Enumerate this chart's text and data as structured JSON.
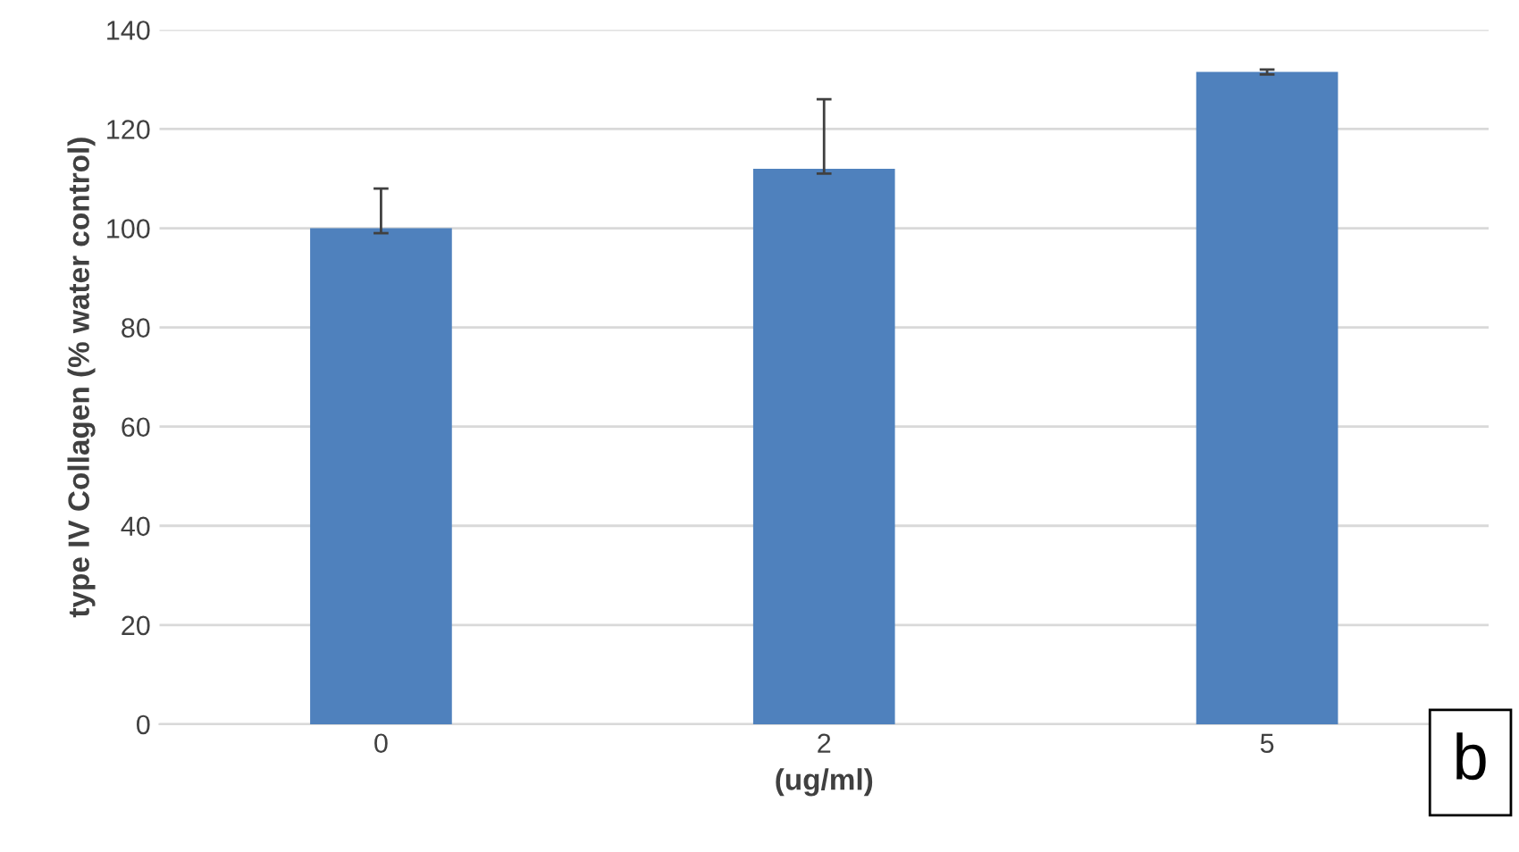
{
  "chart_data": {
    "type": "bar",
    "xlabel": "(ug/ml)",
    "ylabel": "type IV Collagen (% water control)",
    "categories": [
      "0",
      "2",
      "5"
    ],
    "values": [
      100,
      112,
      131.5
    ],
    "errors": [
      [
        99,
        108
      ],
      [
        111,
        126
      ],
      [
        131,
        132
      ]
    ],
    "color": "#4f81bd",
    "ylim": [
      0,
      140
    ],
    "yticks": [
      0,
      20,
      40,
      60,
      80,
      100,
      120,
      140
    ],
    "grid": "y",
    "annotations": [
      "b"
    ]
  }
}
